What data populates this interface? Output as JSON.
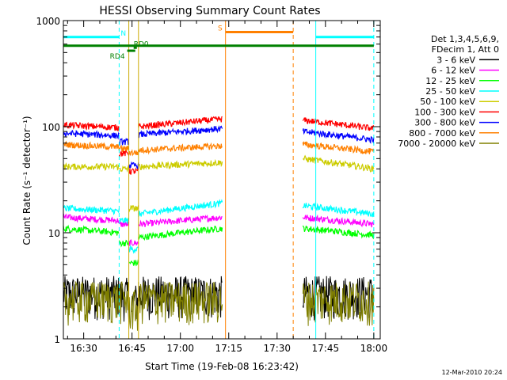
{
  "chart_data": {
    "type": "line",
    "title": "HESSI Observing Summary Count Rates",
    "xlabel": "Start Time (19-Feb-08 16:23:42)",
    "ylabel": "Count Rate (s⁻¹ detector⁻¹)",
    "yscale": "log",
    "ylim": [
      1,
      1000
    ],
    "xlim": [
      "16:23:42",
      "18:02:00"
    ],
    "x_ticks": [
      "16:30",
      "16:45",
      "17:00",
      "17:15",
      "17:30",
      "17:45",
      "18:00"
    ],
    "y_ticks": [
      {
        "value": 1,
        "label": "1"
      },
      {
        "value": 10,
        "label": "10"
      },
      {
        "value": 100,
        "label": "100"
      },
      {
        "value": 1000,
        "label": "1000"
      }
    ],
    "legend_header": [
      "Det 1,3,4,5,6,9,",
      "FDecim 1, Att 0"
    ],
    "legend_position": "right",
    "data_gaps": [
      [
        "17:14:00",
        "17:37:00"
      ]
    ],
    "series": [
      {
        "name": "3 - 6 keV",
        "color": "#000000",
        "segments": [
          {
            "start": "16:23:42",
            "end": "16:41:00",
            "value": 2.7
          },
          {
            "start": "16:41:00",
            "end": "16:44:00",
            "value": 2.6
          },
          {
            "start": "16:45:00",
            "end": "16:47:00",
            "value": 2.3
          },
          {
            "start": "16:47:00",
            "end": "17:13:00",
            "value": 2.7
          },
          {
            "start": "17:38:00",
            "end": "18:00:00",
            "value": 2.7
          }
        ]
      },
      {
        "name": "6 - 12 keV",
        "color": "#ff00ff",
        "segments": [
          {
            "start": "16:23:42",
            "end": "16:41:00",
            "value": 14,
            "end_value": 13
          },
          {
            "start": "16:41:00",
            "end": "16:44:00",
            "value": 12
          },
          {
            "start": "16:44:00",
            "end": "16:47:00",
            "value": 8
          },
          {
            "start": "16:47:00",
            "end": "17:13:00",
            "value": 12,
            "end_value": 14
          },
          {
            "start": "17:38:00",
            "end": "18:00:00",
            "value": 14,
            "end_value": 12
          }
        ]
      },
      {
        "name": "12 - 25 keV",
        "color": "#00ff00",
        "segments": [
          {
            "start": "16:23:42",
            "end": "16:41:00",
            "value": 11,
            "end_value": 10
          },
          {
            "start": "16:41:00",
            "end": "16:44:00",
            "value": 8
          },
          {
            "start": "16:44:00",
            "end": "16:47:00",
            "value": 5.2
          },
          {
            "start": "16:47:00",
            "end": "17:13:00",
            "value": 9,
            "end_value": 11
          },
          {
            "start": "17:38:00",
            "end": "18:00:00",
            "value": 11,
            "end_value": 9.5
          }
        ]
      },
      {
        "name": "25 - 50 keV",
        "color": "#00ffff",
        "segments": [
          {
            "start": "16:23:42",
            "end": "16:41:00",
            "value": 17,
            "end_value": 16
          },
          {
            "start": "16:41:00",
            "end": "16:44:00",
            "value": 13
          },
          {
            "start": "16:44:00",
            "end": "16:47:00",
            "value": 7
          },
          {
            "start": "16:47:00",
            "end": "17:13:00",
            "value": 15,
            "end_value": 19
          },
          {
            "start": "17:38:00",
            "end": "18:00:00",
            "value": 18,
            "end_value": 15
          }
        ]
      },
      {
        "name": "50 - 100 keV",
        "color": "#cccc00",
        "segments": [
          {
            "start": "16:23:42",
            "end": "16:41:00",
            "value": 42
          },
          {
            "start": "16:41:00",
            "end": "16:44:00",
            "value": 40
          },
          {
            "start": "16:44:00",
            "end": "16:47:00",
            "value": 17
          },
          {
            "start": "16:47:00",
            "end": "17:13:00",
            "value": 42,
            "end_value": 46
          },
          {
            "start": "17:38:00",
            "end": "18:00:00",
            "value": 50,
            "end_value": 40
          }
        ]
      },
      {
        "name": "100 - 300 keV",
        "color": "#ff0000",
        "segments": [
          {
            "start": "16:23:42",
            "end": "16:41:00",
            "value": 104,
            "end_value": 98
          },
          {
            "start": "16:41:00",
            "end": "16:44:00",
            "value": 56
          },
          {
            "start": "16:44:00",
            "end": "16:47:00",
            "value": 38
          },
          {
            "start": "16:47:00",
            "end": "17:13:00",
            "value": 100,
            "end_value": 118
          },
          {
            "start": "17:38:00",
            "end": "18:00:00",
            "value": 115,
            "end_value": 96
          }
        ]
      },
      {
        "name": "300 - 800 keV",
        "color": "#0000ff",
        "segments": [
          {
            "start": "16:23:42",
            "end": "16:41:00",
            "value": 87,
            "end_value": 82
          },
          {
            "start": "16:41:00",
            "end": "16:44:00",
            "value": 72
          },
          {
            "start": "16:44:00",
            "end": "16:47:00",
            "value": 43
          },
          {
            "start": "16:47:00",
            "end": "17:13:00",
            "value": 84,
            "end_value": 96
          },
          {
            "start": "17:38:00",
            "end": "18:00:00",
            "value": 90,
            "end_value": 75
          }
        ]
      },
      {
        "name": "800 - 7000 keV",
        "color": "#ff8000",
        "segments": [
          {
            "start": "16:23:42",
            "end": "16:41:00",
            "value": 68,
            "end_value": 64
          },
          {
            "start": "16:41:00",
            "end": "16:44:00",
            "value": 62
          },
          {
            "start": "16:44:00",
            "end": "16:47:00",
            "value": 57
          },
          {
            "start": "16:47:00",
            "end": "17:13:00",
            "value": 60,
            "end_value": 66
          },
          {
            "start": "17:38:00",
            "end": "18:00:00",
            "value": 68,
            "end_value": 58
          }
        ]
      },
      {
        "name": "7000 - 20000 keV",
        "color": "#808000",
        "segments": [
          {
            "start": "16:23:42",
            "end": "16:44:00",
            "value": 2.4
          },
          {
            "start": "16:44:00",
            "end": "16:47:00",
            "value": 2.0
          },
          {
            "start": "16:47:00",
            "end": "17:13:00",
            "value": 2.4
          },
          {
            "start": "17:38:00",
            "end": "18:00:00",
            "value": 2.4
          }
        ]
      }
    ],
    "flag_bars": [
      {
        "label": "N",
        "color": "#00ffff",
        "segments": [
          [
            "16:23:42",
            "16:41:00"
          ],
          [
            "17:42:00",
            "18:00:00"
          ]
        ],
        "value": 700
      },
      {
        "label": "",
        "color": "#008000",
        "segments": [
          [
            "16:23:42",
            "18:00:00"
          ]
        ],
        "value": 580
      },
      {
        "label": "RD4",
        "color": "#008000",
        "segments": [
          [
            "16:43:30",
            "16:46:00"
          ]
        ],
        "value": 520
      },
      {
        "label": "RD0",
        "color": "#008000",
        "segments": [
          [
            "16:45:30",
            "16:46:30"
          ]
        ],
        "value": 555
      },
      {
        "label": "S",
        "color": "#ff8000",
        "segments": [
          [
            "17:14:00",
            "17:35:00"
          ]
        ],
        "value": 780
      }
    ],
    "vertical_markers": [
      {
        "time": "16:23:42",
        "color": "#00ffff",
        "style": "solid"
      },
      {
        "time": "16:41:00",
        "color": "#00ffff",
        "style": "dashed"
      },
      {
        "time": "17:42:00",
        "color": "#00ffff",
        "style": "solid"
      },
      {
        "time": "18:00:00",
        "color": "#00ffff",
        "style": "dashed"
      },
      {
        "time": "17:14:00",
        "color": "#ff8000",
        "style": "solid"
      },
      {
        "time": "17:35:00",
        "color": "#ff8000",
        "style": "dashed"
      },
      {
        "time": "16:44:00",
        "color": "#ccaa00",
        "style": "solid"
      },
      {
        "time": "16:47:00",
        "color": "#ccaa00",
        "style": "solid"
      }
    ]
  },
  "footer": {
    "date": "12-Mar-2010 20:24"
  }
}
